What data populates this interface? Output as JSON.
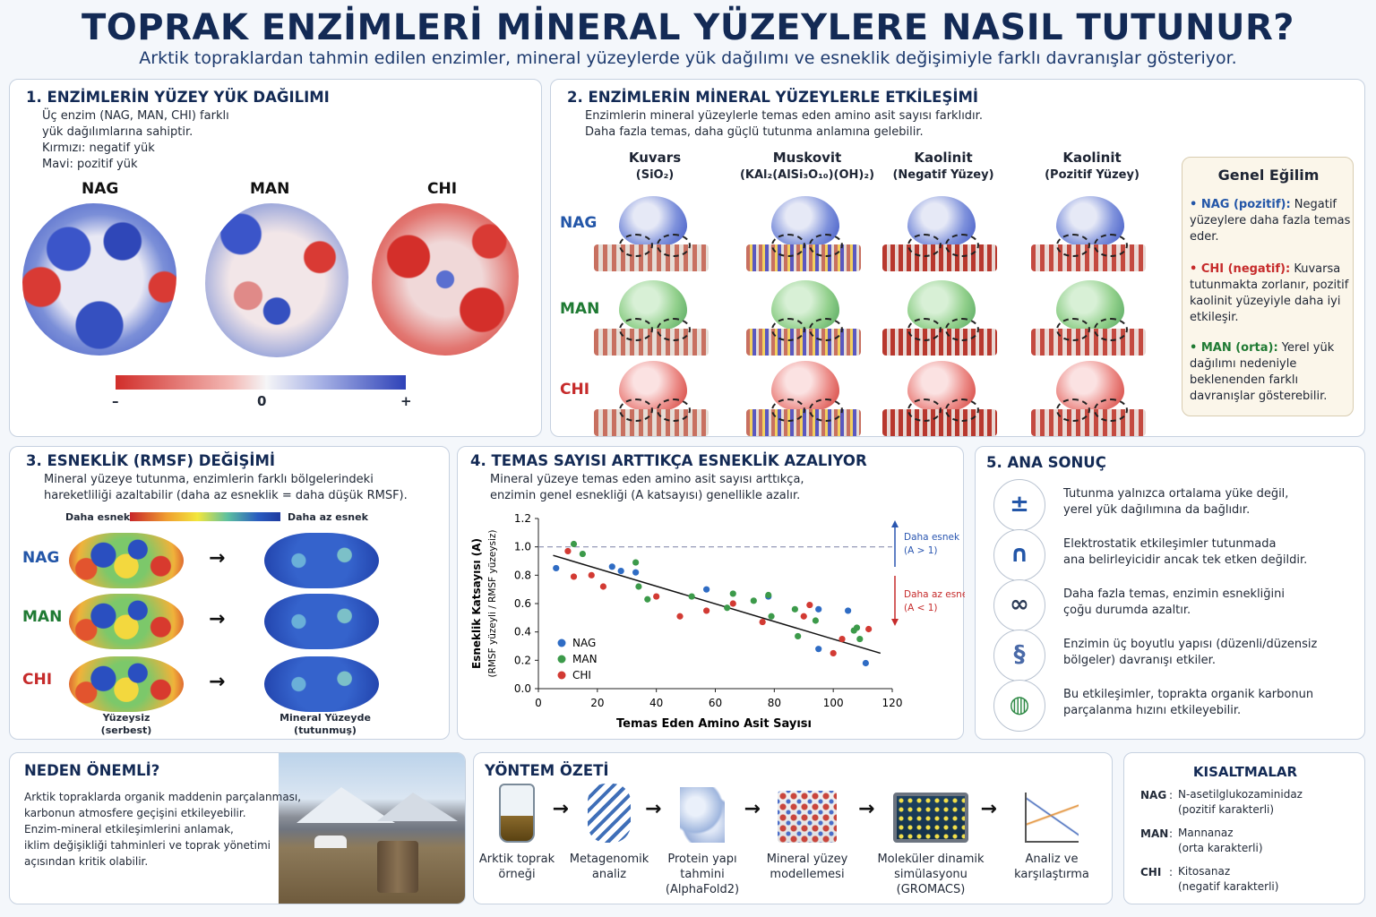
{
  "header": {
    "title": "TOPRAK ENZİMLERİ MİNERAL YÜZEYLERE NASIL TUTUNUR?",
    "subtitle": "Arktik topraklardan tahmin edilen enzimler, mineral yüzeylerde yük dağılımı ve esneklik değişimiyle farklı davranışlar gösteriyor."
  },
  "enzymes": {
    "nag": "NAG",
    "man": "MAN",
    "chi": "CHI"
  },
  "panel1": {
    "title": "1. ENZİMLERİN YÜZEY YÜK DAĞILIMI",
    "lines": [
      "Üç enzim (NAG, MAN, CHI) farklı",
      "yük dağılımlarına sahiptir.",
      "Kırmızı: negatif yük",
      "Mavi: pozitif yük"
    ],
    "scale_minus": "–",
    "scale_zero": "0",
    "scale_plus": "+"
  },
  "panel2": {
    "title": "2. ENZİMLERİN MİNERAL YÜZEYLERLE ETKİLEŞİMİ",
    "lines": [
      "Enzimlerin mineral yüzeylerle temas eden amino asit sayısı farklıdır.",
      "Daha fazla temas, daha güçlü tutunma anlamına gelebilir."
    ],
    "columns": [
      {
        "name": "Kuvars",
        "sub": "(SiO₂)"
      },
      {
        "name": "Muskovit",
        "sub": "(KAl₂(AlSi₃O₁₀)(OH)₂)"
      },
      {
        "name": "Kaolinit",
        "sub": "(Negatif Yüzey)"
      },
      {
        "name": "Kaolinit",
        "sub": "(Pozitif Yüzey)"
      }
    ]
  },
  "trend": {
    "title": "Genel Eğilim",
    "items": [
      {
        "key": "• NAG (pozitif):",
        "text": "Negatif yüzeylere daha fazla temas eder."
      },
      {
        "key": "• CHI (negatif):",
        "text": "Kuvarsa tutunmakta zorlanır, pozitif kaolinit yüzeyiyle daha iyi etkileşir."
      },
      {
        "key": "• MAN (orta):",
        "text": "Yerel yük dağılımı nedeniyle beklenenden farklı davranışlar gösterebilir."
      }
    ]
  },
  "panel3": {
    "title": "3. ESNEKLİK (RMSF) DEĞİŞİMİ",
    "lines": [
      "Mineral yüzeye tutunma, enzimlerin farklı bölgelerindeki",
      "hareketliliği azaltabilir (daha az esneklik = daha düşük RMSF)."
    ],
    "flex_more": "Daha esnek",
    "flex_less": "Daha az esnek",
    "free_label": "Yüzeysiz",
    "free_sub": "(serbest)",
    "bound_label": "Mineral Yüzeyde",
    "bound_sub": "(tutunmuş)"
  },
  "panel4": {
    "title": "4. TEMAS SAYISI ARTTIKÇA ESNEKLİK AZALIYOR",
    "lines": [
      "Mineral yüzeye temas eden amino asit sayısı arttıkça,",
      "enzimin genel esnekliği (A katsayısı) genellikle azalır."
    ],
    "ylabel1": "Esneklik Katsayısı (A)",
    "ylabel2": "(RMSF yüzeyli / RMSF yüzeysiz)",
    "xlabel": "Temas Eden Amino Asit Sayısı",
    "more_flex": "Daha esnek",
    "more_flex_cond": "(A > 1)",
    "less_flex": "Daha az esnek",
    "less_flex_cond": "(A < 1)"
  },
  "chart_data": {
    "type": "scatter",
    "xlabel": "Temas Eden Amino Asit Sayısı",
    "ylabel": "Esneklik Katsayısı (A)",
    "xlim": [
      0,
      120
    ],
    "ylim": [
      0,
      1.2
    ],
    "xticks": [
      0,
      20,
      40,
      60,
      80,
      100,
      120
    ],
    "yticks": [
      0.0,
      0.2,
      0.4,
      0.6,
      0.8,
      1.0,
      1.2
    ],
    "reference_line": 1.0,
    "trendline": [
      [
        5,
        0.94
      ],
      [
        116,
        0.25
      ]
    ],
    "series": [
      {
        "name": "NAG",
        "color": "#2f6cc4",
        "points": [
          [
            6,
            0.85
          ],
          [
            25,
            0.86
          ],
          [
            28,
            0.83
          ],
          [
            33,
            0.82
          ],
          [
            57,
            0.7
          ],
          [
            78,
            0.65
          ],
          [
            95,
            0.56
          ],
          [
            105,
            0.55
          ],
          [
            95,
            0.28
          ],
          [
            111,
            0.18
          ]
        ]
      },
      {
        "name": "MAN",
        "color": "#3c9a4a",
        "points": [
          [
            12,
            1.02
          ],
          [
            15,
            0.95
          ],
          [
            33,
            0.89
          ],
          [
            34,
            0.72
          ],
          [
            37,
            0.63
          ],
          [
            52,
            0.65
          ],
          [
            64,
            0.57
          ],
          [
            66,
            0.67
          ],
          [
            73,
            0.62
          ],
          [
            78,
            0.66
          ],
          [
            79,
            0.51
          ],
          [
            87,
            0.56
          ],
          [
            88,
            0.37
          ],
          [
            94,
            0.48
          ],
          [
            107,
            0.41
          ],
          [
            108,
            0.43
          ],
          [
            109,
            0.35
          ]
        ]
      },
      {
        "name": "CHI",
        "color": "#d23a33",
        "points": [
          [
            10,
            0.97
          ],
          [
            12,
            0.79
          ],
          [
            18,
            0.8
          ],
          [
            22,
            0.72
          ],
          [
            40,
            0.65
          ],
          [
            48,
            0.51
          ],
          [
            57,
            0.55
          ],
          [
            66,
            0.6
          ],
          [
            76,
            0.47
          ],
          [
            90,
            0.51
          ],
          [
            92,
            0.59
          ],
          [
            100,
            0.25
          ],
          [
            103,
            0.35
          ],
          [
            112,
            0.42
          ]
        ]
      }
    ]
  },
  "panel5": {
    "title": "5. ANA SONUÇ",
    "items": [
      {
        "icon": "charge-icon",
        "lines": [
          "Tutunma yalnızca ortalama yüke değil,",
          "yerel yük dağılımına da bağlıdır."
        ]
      },
      {
        "icon": "magnet-icon",
        "lines": [
          "Elektrostatik etkileşimler tutunmada",
          "ana belirleyicidir ancak tek etken değildir."
        ]
      },
      {
        "icon": "chain-link-icon",
        "lines": [
          "Daha fazla temas, enzimin esnekliğini",
          "çoğu durumda azaltır."
        ]
      },
      {
        "icon": "protein-structure-icon",
        "lines": [
          "Enzimin üç boyutlu yapısı (düzenli/düzensiz",
          "bölgeler) davranışı etkiler."
        ]
      },
      {
        "icon": "earth-leaf-icon",
        "lines": [
          "Bu etkileşimler, toprakta organik karbonun",
          "parçalanma hızını etkileyebilir."
        ]
      }
    ]
  },
  "why": {
    "title": "NEDEN ÖNEMLİ?",
    "lines": [
      "Arktik topraklarda organik maddenin parçalanması,",
      "karbonun atmosfere geçişini etkileyebilir.",
      "Enzim-mineral etkileşimlerini anlamak,",
      "iklim değişikliği tahminleri ve toprak yönetimi",
      "açısından kritik olabilir."
    ]
  },
  "method": {
    "title": "YÖNTEM ÖZETİ",
    "steps": [
      {
        "icon": "soil-jar-icon",
        "lines": [
          "Arktik toprak",
          "örneği"
        ]
      },
      {
        "icon": "dna-icon",
        "lines": [
          "Metagenomik",
          "analiz"
        ]
      },
      {
        "icon": "protein-icon",
        "lines": [
          "Protein yapı",
          "tahmini",
          "(AlphaFold2)"
        ]
      },
      {
        "icon": "mineral-lattice-icon",
        "lines": [
          "Mineral yüzey",
          "modellemesi"
        ]
      },
      {
        "icon": "monitor-icon",
        "lines": [
          "Moleküler dinamik",
          "simülasyonu",
          "(GROMACS)"
        ]
      },
      {
        "icon": "line-chart-icon",
        "lines": [
          "Analiz ve",
          "karşılaştırma"
        ]
      }
    ]
  },
  "abbr": {
    "title": "KISALTMALAR",
    "items": [
      {
        "key": "NAG",
        "sep": ":",
        "l1": "N-asetilglukozaminidaz",
        "l2": "(pozitif karakterli)"
      },
      {
        "key": "MAN",
        "sep": ":",
        "l1": "Mannanaz",
        "l2": "(orta karakterli)"
      },
      {
        "key": "CHI",
        "sep": ":",
        "l1": "Kitosanaz",
        "l2": "(negatif karakterli)"
      }
    ]
  }
}
